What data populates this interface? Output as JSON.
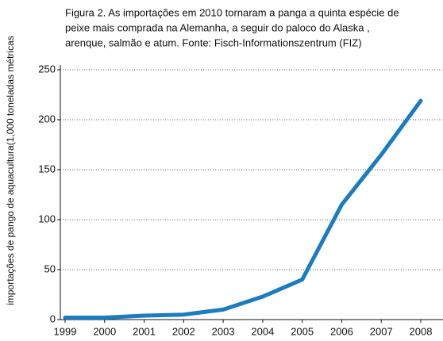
{
  "chart_data": {
    "type": "line",
    "title": [
      "Figura 2. As importações em 2010 tornaram a panga a quinta espécie de",
      "peixe mais comprada na Alemanha, a seguir do paloco do Alaska ,",
      "arenque, salmão e atum. Fonte: Fisch-Informationszentrum (FIZ)"
    ],
    "ylabel": "importações de pango de aquacultura(1,000  toneladas métricas",
    "x": [
      1999,
      2000,
      2001,
      2002,
      2003,
      2004,
      2005,
      2006,
      2007,
      2008
    ],
    "series": [
      {
        "color": "#1a7cc1",
        "values": [
          2,
          2,
          4,
          5,
          10,
          23,
          40,
          115,
          165,
          219
        ]
      }
    ],
    "xlim": [
      1999,
      2008
    ],
    "xticks": [
      1999,
      2000,
      2001,
      2002,
      2003,
      2004,
      2005,
      2006,
      2007,
      2008
    ],
    "ylim": [
      0,
      250
    ],
    "yticks": [
      0,
      50,
      100,
      150,
      200,
      250
    ],
    "grid": true
  }
}
